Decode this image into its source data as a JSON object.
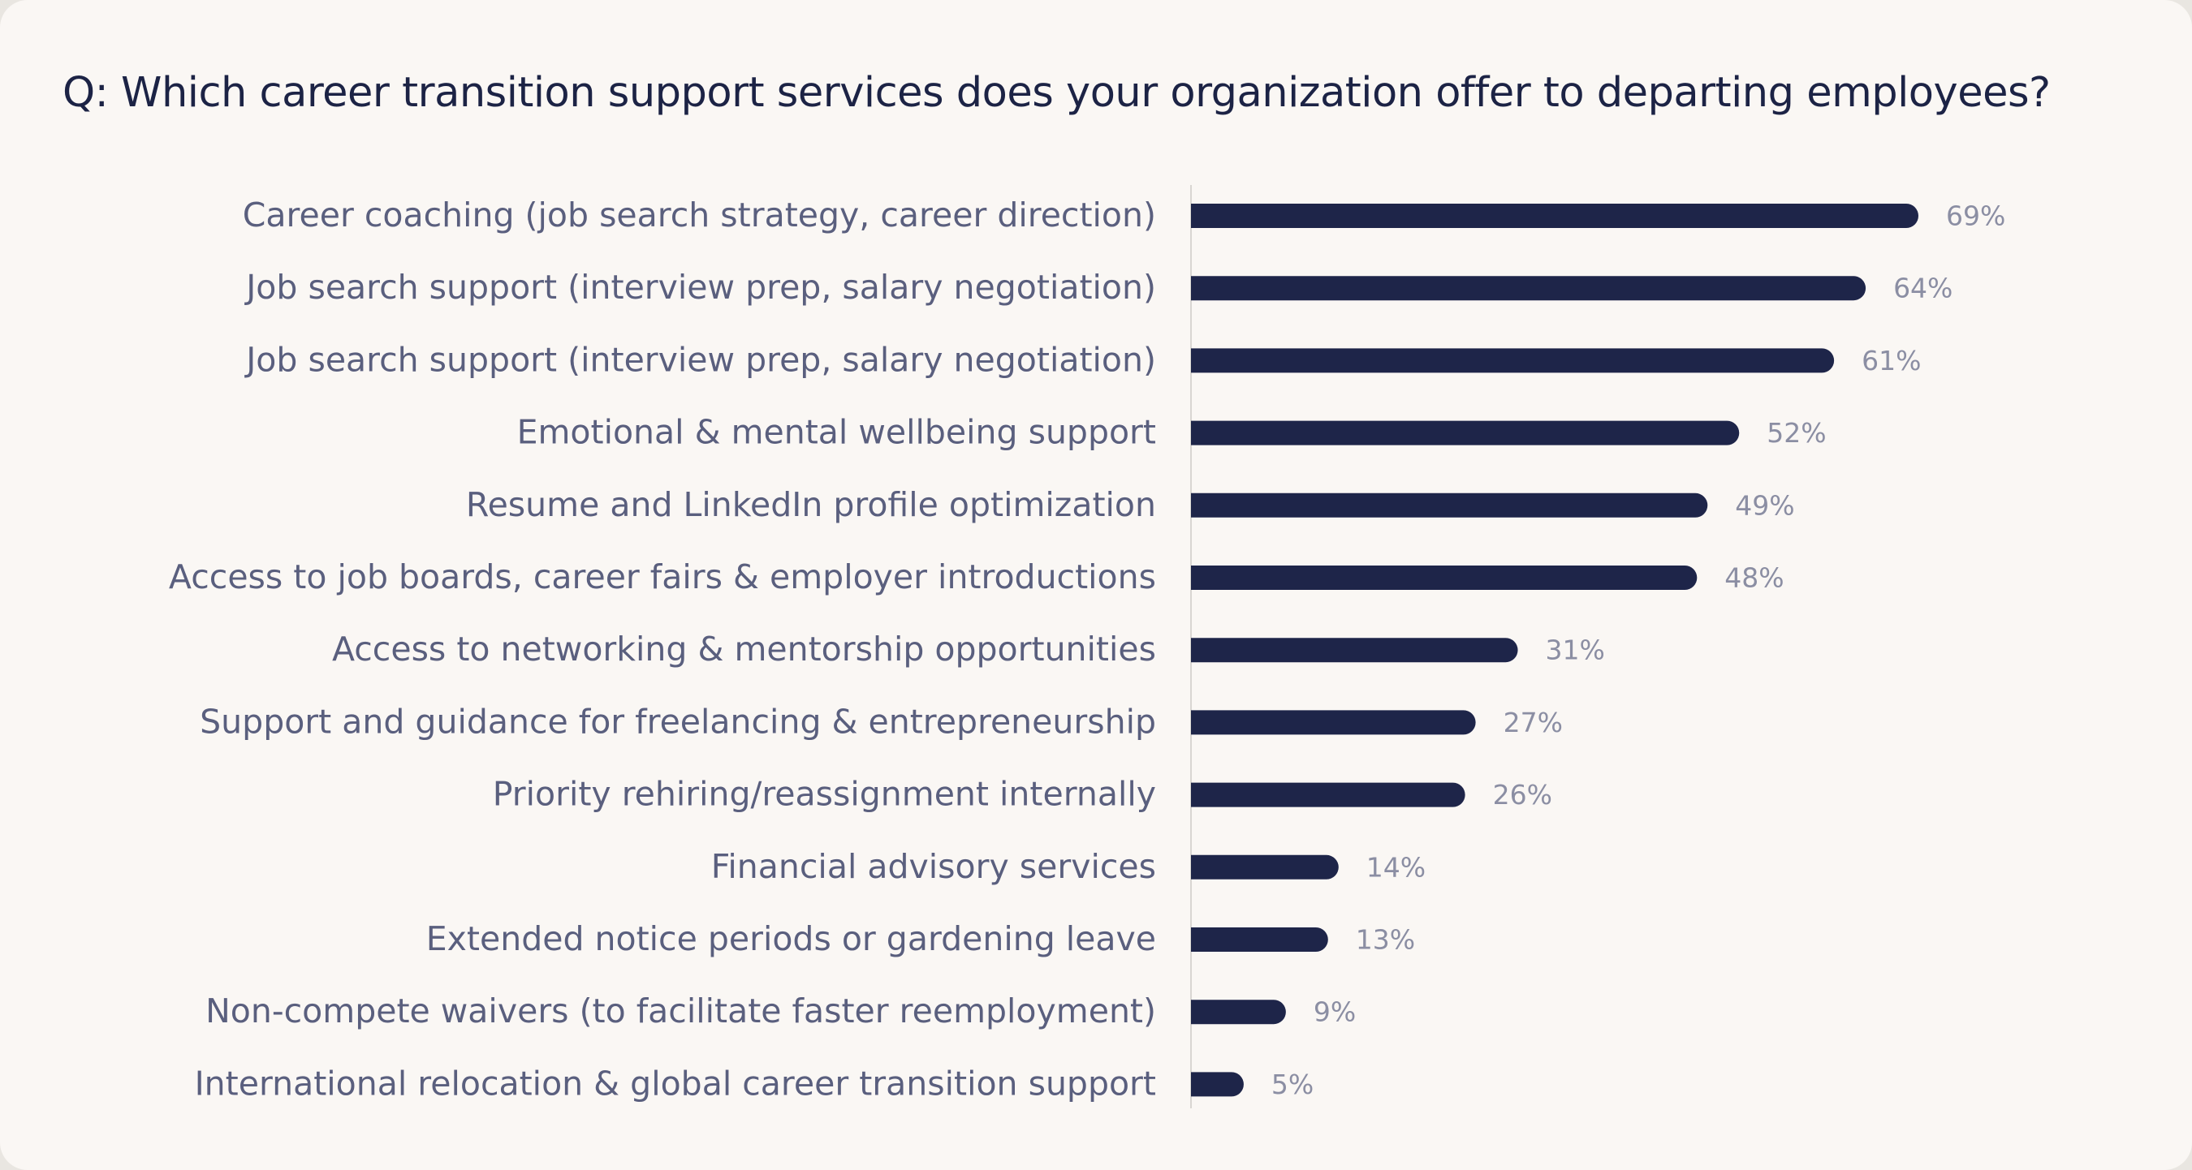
{
  "chart_data": {
    "type": "bar",
    "orientation": "horizontal",
    "title": "Q: Which career transition support services does your organization offer to departing employees?",
    "categories": [
      "Career coaching (job search strategy, career direction)",
      "Job search support (interview prep, salary negotiation)",
      "Job search support (interview prep, salary negotiation)",
      "Emotional & mental wellbeing support",
      "Resume and LinkedIn profile optimization",
      "Access to job boards, career fairs & employer introductions",
      "Access to networking & mentorship opportunities",
      "Support and guidance for freelancing & entrepreneurship",
      "Priority rehiring/reassignment internally",
      "Financial advisory services",
      "Extended notice periods or gardening leave",
      "Non-compete waivers (to facilitate faster reemployment)",
      "International relocation & global career transition support"
    ],
    "values": [
      69,
      64,
      61,
      52,
      49,
      48,
      31,
      27,
      26,
      14,
      13,
      9,
      5
    ],
    "value_labels": [
      "69%",
      "64%",
      "61%",
      "52%",
      "49%",
      "48%",
      "31%",
      "27%",
      "26%",
      "14%",
      "13%",
      "9%",
      "5%"
    ],
    "unit": "%",
    "xlim": [
      0,
      69
    ],
    "grid": false,
    "legend": "none",
    "bar_color": "#1e2549",
    "axis_color": "#d9d6d2",
    "label_color": "#5a5f7e",
    "value_label_color": "#8b8ea3",
    "title_color": "#1c2345",
    "background_color": "#faf7f4"
  }
}
